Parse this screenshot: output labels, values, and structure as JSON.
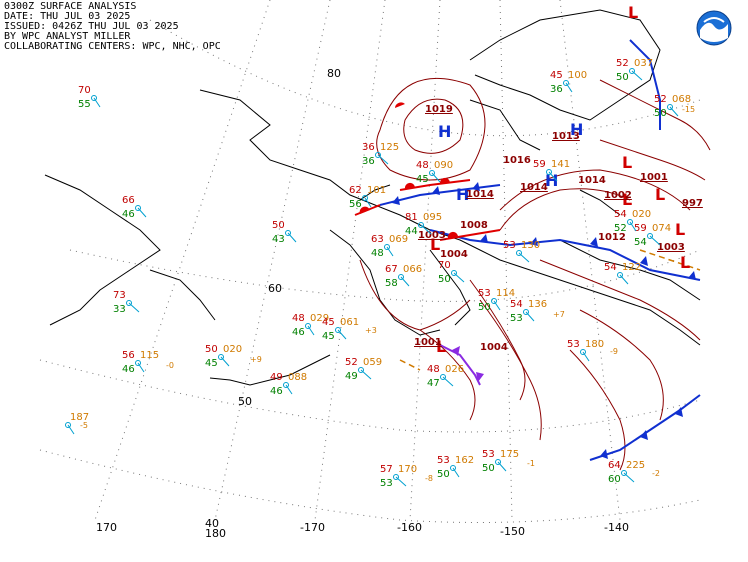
{
  "header": {
    "line1": "0300Z SURFACE ANALYSIS",
    "line2": "DATE: THU JUL 03 2025",
    "line3": "ISSUED: 0426Z THU JUL 03 2025",
    "line4": "BY WPC ANALYST MILLER",
    "line5": "COLLABORATING CENTERS: WPC, NHC, OPC"
  },
  "logo": {
    "icon": "noaa-logo-icon",
    "color": "#1b6fd6"
  },
  "colors": {
    "temperature": "#c00000",
    "dewpoint": "#008000",
    "pressure": "#d07a00",
    "isobar": "#8b0000",
    "high": "#1030d0",
    "low": "#d00000",
    "cold_front": "#1030d0",
    "warm_front": "#e00000",
    "occluded": "#8a2be2",
    "station": "#00a0d0"
  },
  "grid_labels": {
    "lat": [
      "80",
      "60",
      "50"
    ],
    "lon": [
      "170",
      "180",
      "-170",
      "-160",
      "-150",
      "-140"
    ],
    "lat40": "40"
  },
  "pressure_centers": [
    {
      "type": "H",
      "value": "1019"
    },
    {
      "type": "H",
      "value": "1014"
    },
    {
      "type": "H",
      "value": "1013"
    },
    {
      "type": "H",
      "value": "1014"
    },
    {
      "type": "L",
      "value": "1003"
    },
    {
      "type": "L",
      "value": "1001"
    },
    {
      "type": "L",
      "value": "1003"
    },
    {
      "type": "L",
      "value": "1001"
    },
    {
      "type": "L",
      "value": "1002"
    },
    {
      "type": "L",
      "value": "997"
    }
  ],
  "stations": [
    {
      "t": "70",
      "td": "55",
      "p": ""
    },
    {
      "t": "66",
      "td": "46",
      "p": ""
    },
    {
      "t": "73",
      "td": "33",
      "p": ""
    },
    {
      "t": "56",
      "td": "46",
      "p": "115"
    },
    {
      "t": "50",
      "td": "43",
      "p": ""
    },
    {
      "t": "36",
      "td": "36",
      "p": "125"
    },
    {
      "t": "62",
      "td": "56",
      "p": "101"
    },
    {
      "t": "48",
      "td": "45",
      "p": "090"
    },
    {
      "t": "81",
      "td": "44",
      "p": "095"
    },
    {
      "t": "63",
      "td": "48",
      "p": "069"
    },
    {
      "t": "67",
      "td": "58",
      "p": "066"
    },
    {
      "t": "70",
      "td": "50",
      "p": ""
    },
    {
      "t": "48",
      "td": "46",
      "p": "029"
    },
    {
      "t": "45",
      "td": "45",
      "p": "061"
    },
    {
      "t": "52",
      "td": "49",
      "p": "059"
    },
    {
      "t": "49",
      "td": "46",
      "p": "088"
    },
    {
      "t": "50",
      "td": "45",
      "p": "020"
    },
    {
      "t": "48",
      "td": "47",
      "p": "026"
    },
    {
      "t": "53",
      "td": "50",
      "p": "114"
    },
    {
      "t": "54",
      "td": "53",
      "p": "136"
    },
    {
      "t": "53",
      "td": "",
      "p": "130"
    },
    {
      "t": "53",
      "td": "",
      "p": "180"
    },
    {
      "t": "54",
      "td": "",
      "p": "122"
    },
    {
      "t": "59",
      "td": "54",
      "p": "074"
    },
    {
      "t": "54",
      "td": "52",
      "p": "020"
    },
    {
      "t": "59",
      "td": "",
      "p": "141"
    },
    {
      "t": "52",
      "td": "50",
      "p": "037"
    },
    {
      "t": "45",
      "td": "36",
      "p": "100"
    },
    {
      "t": "52",
      "td": "50",
      "p": "068"
    },
    {
      "t": "57",
      "td": "53",
      "p": "170"
    },
    {
      "t": "53",
      "td": "50",
      "p": "162"
    },
    {
      "t": "53",
      "td": "50",
      "p": "175"
    },
    {
      "t": "64",
      "td": "60",
      "p": "225"
    },
    {
      "t": "",
      "td": "",
      "p": "187"
    }
  ],
  "isobar_labels": [
    "1016",
    "1014",
    "1004",
    "1008",
    "1004",
    "1012"
  ],
  "tendencies": [
    "-5",
    "-8",
    "-1",
    "-2",
    "+7",
    "+9",
    "+3",
    "-15",
    "-9",
    "-0"
  ]
}
